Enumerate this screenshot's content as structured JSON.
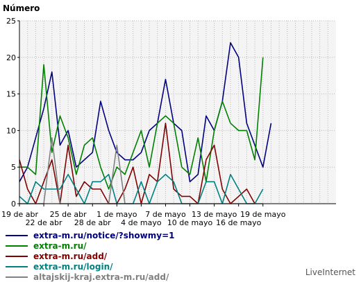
{
  "chart_data": {
    "type": "line",
    "ylabel": "Número",
    "ylim": [
      0,
      25
    ],
    "yticks": [
      0,
      5,
      10,
      15,
      20,
      25
    ],
    "grid": true,
    "legend_placement": "bottom",
    "n_days": 39,
    "x_ticks_upper": [
      {
        "day": 0,
        "label": "19 de abr"
      },
      {
        "day": 6,
        "label": "25 de abr"
      },
      {
        "day": 12,
        "label": "1 de mayo"
      },
      {
        "day": 18,
        "label": "7 de mayo"
      },
      {
        "day": 24,
        "label": "13 de mayo"
      },
      {
        "day": 30,
        "label": "19 de mayo"
      }
    ],
    "x_ticks_lower": [
      {
        "day": 3,
        "label": "22 de abr"
      },
      {
        "day": 9,
        "label": "28 de abr"
      },
      {
        "day": 15,
        "label": "4 de mayo"
      },
      {
        "day": 21,
        "label": "10 de mayo"
      },
      {
        "day": 27,
        "label": "16 de mayo"
      }
    ],
    "series": [
      {
        "name": "extra-m.ru/notice/?showmy=1",
        "color": "#000080",
        "values": [
          3,
          5,
          9,
          13,
          18,
          8,
          10,
          5,
          6,
          7,
          14,
          10,
          7,
          6,
          6,
          7,
          10,
          11,
          17,
          11,
          10,
          3,
          4,
          12,
          10,
          14,
          22,
          20,
          11,
          8,
          5,
          11
        ]
      },
      {
        "name": "extra-m.ru/",
        "color": "#008000",
        "values": [
          5,
          5,
          4,
          19,
          7,
          12,
          9,
          4,
          8,
          9,
          5,
          2,
          5,
          4,
          7,
          10,
          5,
          11,
          12,
          11,
          5,
          4,
          9,
          3,
          10,
          14,
          11,
          10,
          10,
          6,
          20
        ]
      },
      {
        "name": "extra-m.ru/add/",
        "color": "#800000",
        "values": [
          6,
          2,
          0,
          3,
          6,
          0,
          8,
          1,
          3,
          2,
          2,
          0,
          0,
          2,
          5,
          0,
          4,
          3,
          11,
          2,
          1,
          1,
          0,
          6,
          8,
          2,
          0,
          1,
          2,
          0
        ]
      },
      {
        "name": "extra-m.ru/login/",
        "color": "#008080",
        "values": [
          1,
          0,
          3,
          2,
          2,
          2,
          4,
          2,
          0,
          3,
          3,
          4,
          0,
          0,
          0,
          3,
          0,
          3,
          4,
          3,
          0,
          0,
          0,
          3,
          3,
          0,
          4,
          2,
          0,
          0,
          2
        ]
      },
      {
        "name": "altajskij-kraj.extra-m.ru/add/",
        "color": "#808080",
        "values": [
          0,
          0,
          0,
          0,
          9,
          0,
          0,
          0,
          0,
          0,
          0,
          0,
          8,
          0,
          0,
          0,
          0,
          0,
          0,
          0,
          0,
          0,
          0,
          0,
          0,
          0,
          0,
          0,
          0,
          0,
          0
        ]
      }
    ]
  },
  "footer": {
    "brand": "LiveInternet"
  }
}
